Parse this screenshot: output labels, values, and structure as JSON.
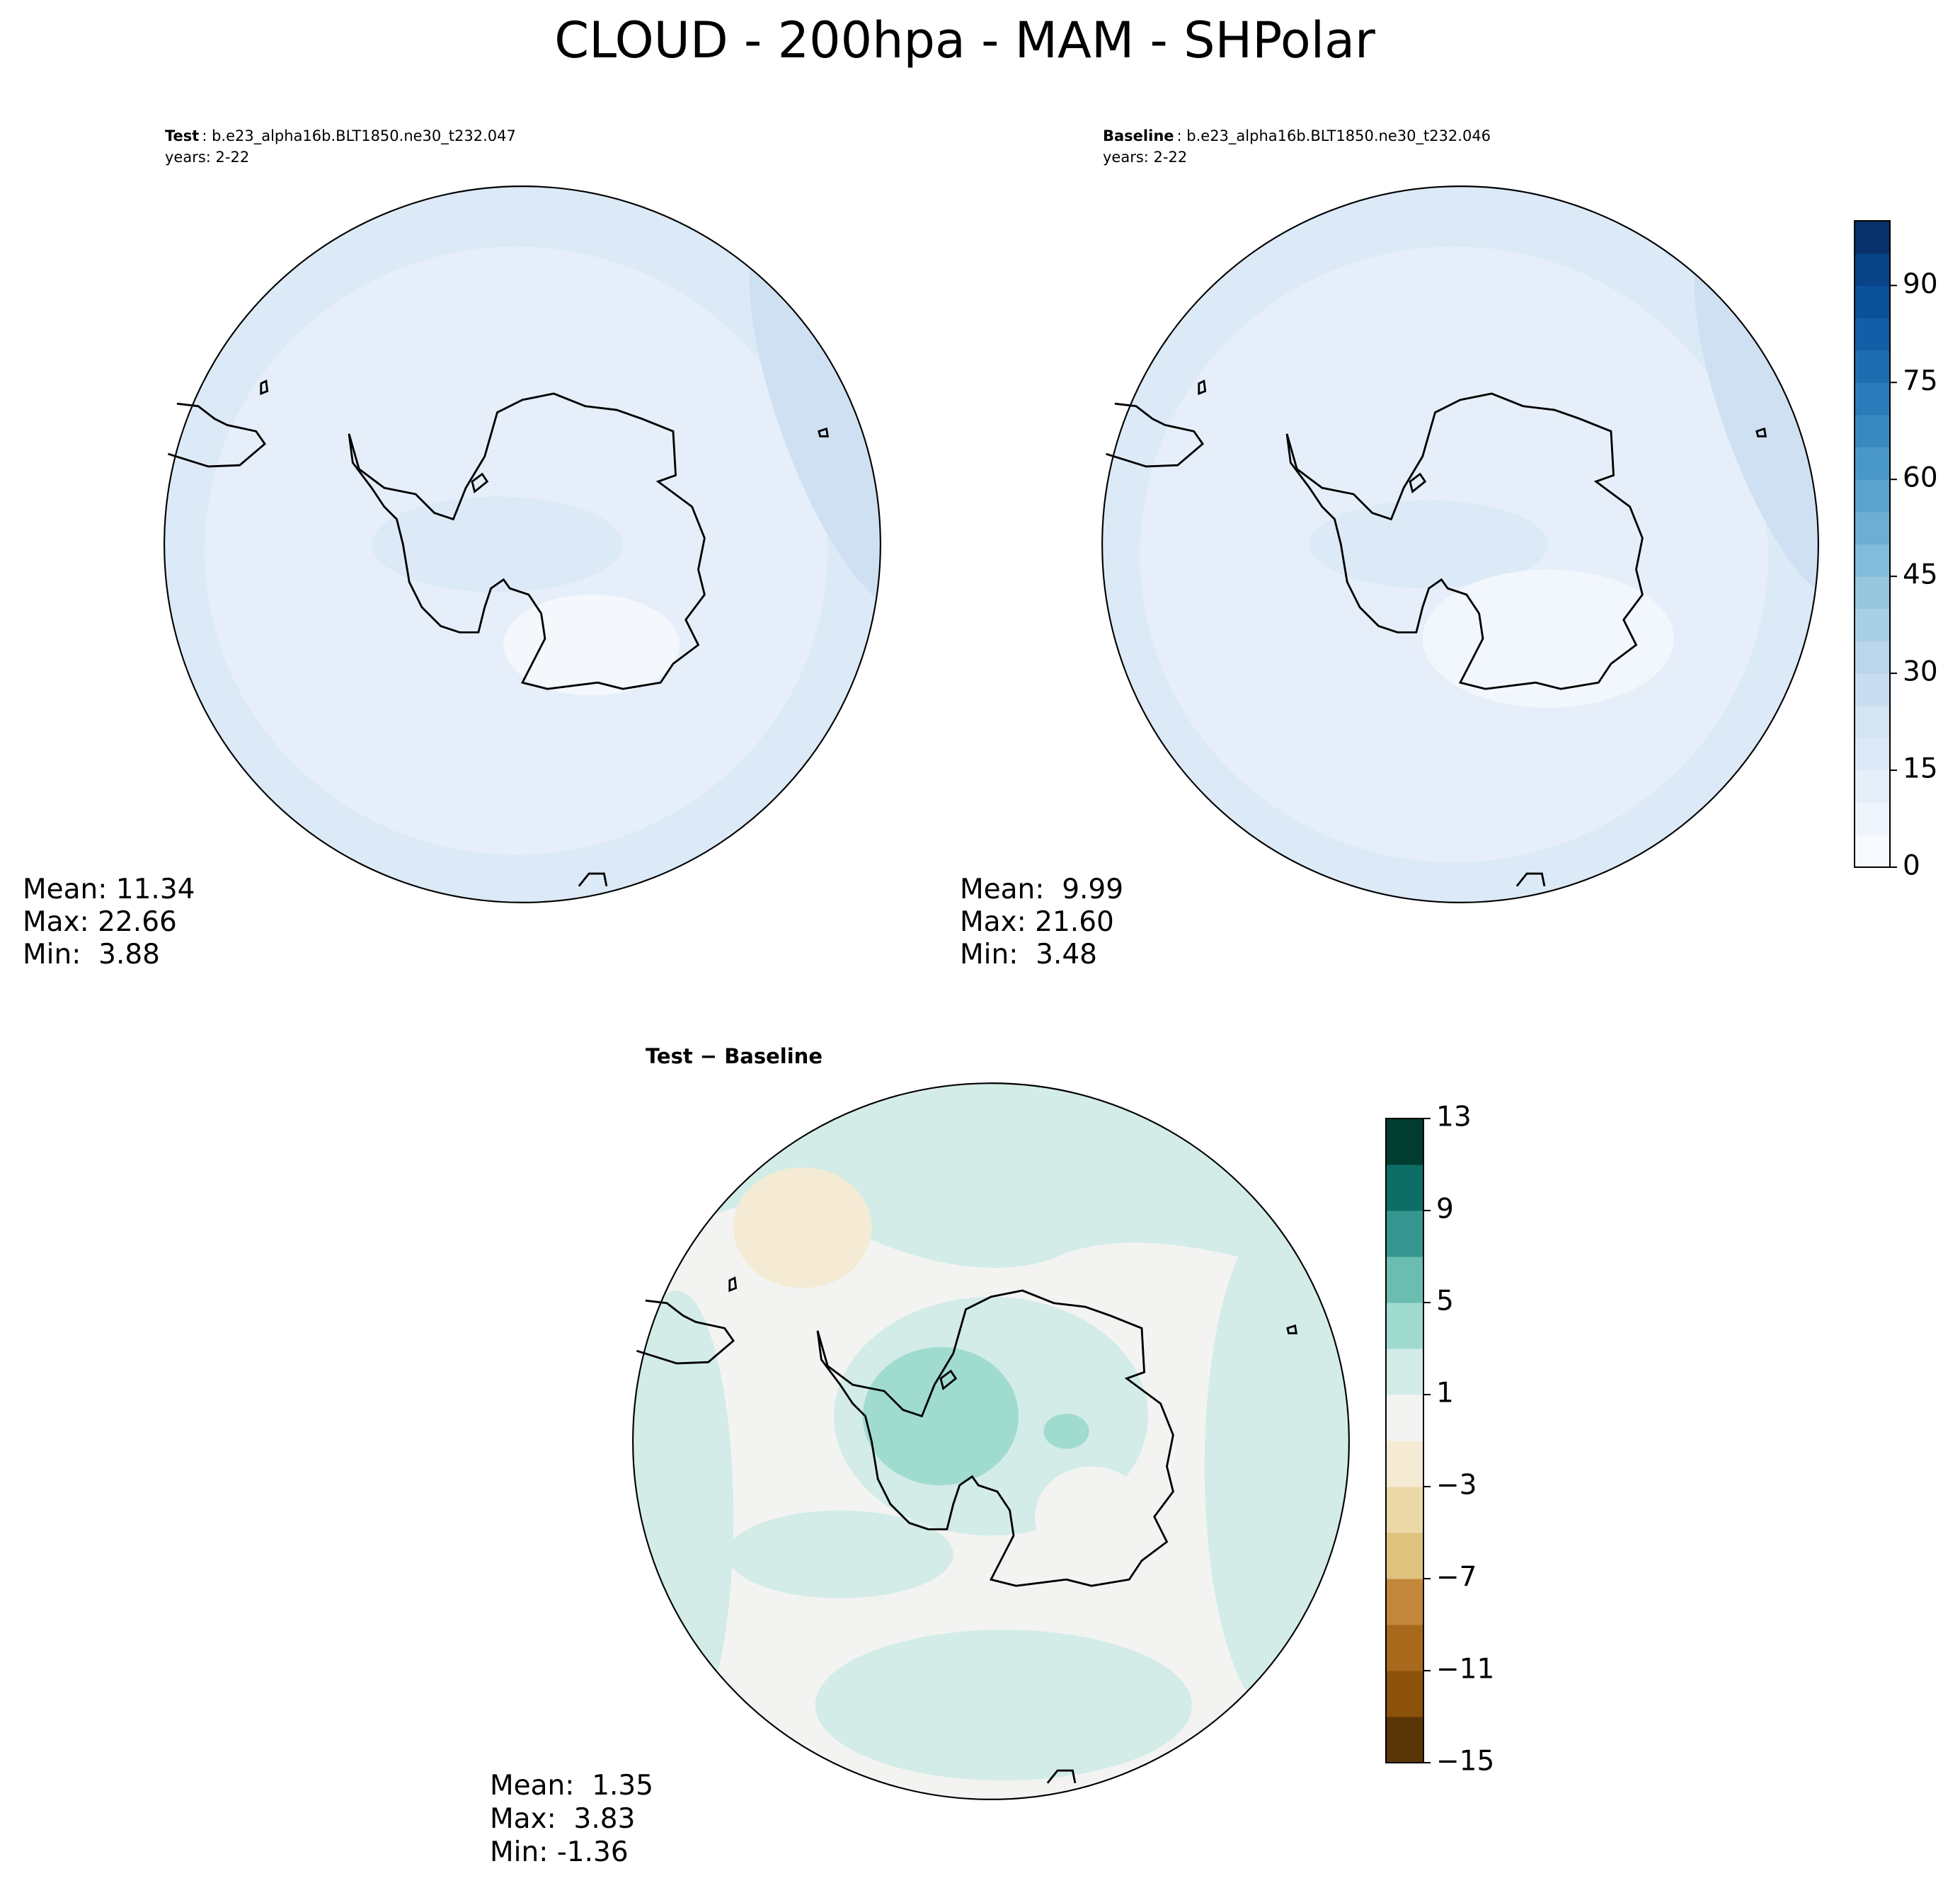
{
  "title": "CLOUD - 200hpa - MAM - SHPolar",
  "panels": [
    {
      "name": "Test",
      "case": ": b.e23_alpha16b.BLT1850.ne30_t232.047",
      "years": "years: 2-22",
      "stats": [
        "Mean: 11.34",
        "Max: 22.66",
        "Min:  3.88"
      ]
    },
    {
      "name": "Baseline",
      "case": ": b.e23_alpha16b.BLT1850.ne30_t232.046",
      "years": "years: 2-22",
      "stats": [
        "Mean:  9.99",
        "Max: 21.60",
        "Min:  3.48"
      ]
    },
    {
      "name": "Test − Baseline",
      "stats": [
        "Mean:  1.35",
        "Max:  3.83",
        "Min: -1.36"
      ]
    }
  ],
  "colorbars": [
    {
      "lim": [
        0,
        100
      ],
      "ticks": [
        0,
        15,
        30,
        45,
        60,
        75,
        90
      ],
      "colors": [
        "#f7fbff",
        "#eef5fc",
        "#e5eff9",
        "#dce9f6",
        "#d3e4f3",
        "#c9ddf0",
        "#bad6eb",
        "#a9cfe5",
        "#97c6df",
        "#82bbdb",
        "#6daed5",
        "#5ba2cf",
        "#4a97c9",
        "#3989c1",
        "#2b7bba",
        "#1f6db1",
        "#135fa7",
        "#0b5199",
        "#084388",
        "#08306b"
      ]
    },
    {
      "lim": [
        -15,
        13
      ],
      "ticks": [
        {
          "value": -15,
          "label": "−15"
        },
        {
          "value": -11,
          "label": "−11"
        },
        {
          "value": -7,
          "label": "−7"
        },
        {
          "value": -3,
          "label": "−3"
        },
        1,
        5,
        9,
        13
      ],
      "colors": [
        "#5a3505",
        "#8c510a",
        "#a8691c",
        "#c2873b",
        "#dfc27d",
        "#ecd9a8",
        "#f5ebd4",
        "#f3f4f2",
        "#d3ece8",
        "#a0dbd0",
        "#6abdb0",
        "#35978f",
        "#0e6e66",
        "#003c30"
      ]
    }
  ]
}
